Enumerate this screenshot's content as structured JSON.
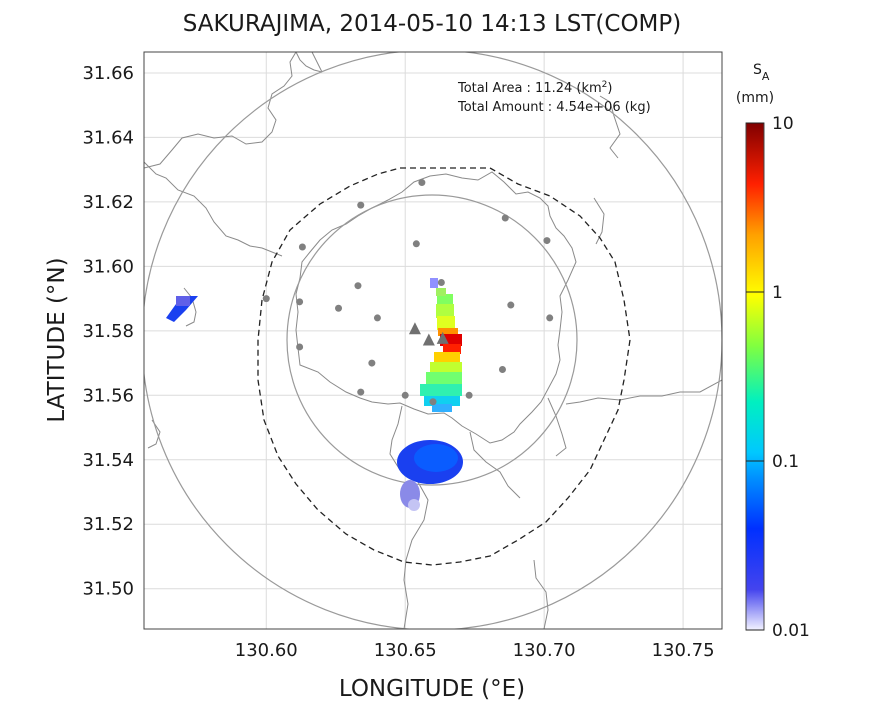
{
  "chart_data": {
    "type": "heatmap",
    "title": "SAKURAJIMA, 2014-05-10 14:13 LST(COMP)",
    "xlabel": "LONGITUDE (°E)",
    "ylabel": "LATITUDE (°N)",
    "xlim": [
      130.556,
      130.764
    ],
    "ylim": [
      31.4875,
      31.6665
    ],
    "x_ticks": [
      130.6,
      130.65,
      130.7,
      130.75
    ],
    "x_tick_labels": [
      "130.60",
      "130.65",
      "130.70",
      "130.75"
    ],
    "y_ticks": [
      31.5,
      31.52,
      31.54,
      31.56,
      31.58,
      31.6,
      31.62,
      31.64,
      31.66
    ],
    "y_tick_labels": [
      "31.50",
      "31.52",
      "31.54",
      "31.56",
      "31.58",
      "31.60",
      "31.62",
      "31.64",
      "31.66"
    ],
    "grid": true,
    "annotations": {
      "area_label": "Total Area   : 11.24 (km",
      "area_sup": "2",
      "area_close": ")",
      "amount_label": "Total Amount : 4.54e+06 (kg)"
    },
    "colorbar": {
      "label_main": "S",
      "label_sub": "A",
      "unit": "(mm)",
      "scale": "log",
      "range": [
        0.01,
        10
      ],
      "ticks": [
        10,
        1,
        0.1,
        0.01
      ],
      "tick_labels": [
        "10",
        "1",
        "0.1",
        "0.01"
      ],
      "colors": [
        "#f2f2ff",
        "#3030f0",
        "#0060ff",
        "#00b0ff",
        "#00e0d0",
        "#40f080",
        "#c0ff30",
        "#ffff00",
        "#ffb000",
        "#ff4000",
        "#e00000",
        "#800000"
      ]
    },
    "range_circles": {
      "center": [
        130.6585,
        31.578
      ],
      "radii_km": [
        15,
        30
      ]
    },
    "stations": [
      [
        130.656,
        31.626
      ],
      [
        130.634,
        31.619
      ],
      [
        130.686,
        31.615
      ],
      [
        130.613,
        31.606
      ],
      [
        130.654,
        31.607
      ],
      [
        130.701,
        31.608
      ],
      [
        130.663,
        31.595
      ],
      [
        130.6,
        31.59
      ],
      [
        130.612,
        31.589
      ],
      [
        130.633,
        31.594
      ],
      [
        130.626,
        31.587
      ],
      [
        130.64,
        31.584
      ],
      [
        130.688,
        31.588
      ],
      [
        130.702,
        31.584
      ],
      [
        130.612,
        31.575
      ],
      [
        130.638,
        31.57
      ],
      [
        130.685,
        31.568
      ],
      [
        130.634,
        31.561
      ],
      [
        130.65,
        31.56
      ],
      [
        130.66,
        31.558
      ],
      [
        130.673,
        31.56
      ]
    ],
    "vents": [
      [
        130.6535,
        31.5805
      ],
      [
        130.6585,
        31.577
      ],
      [
        130.6635,
        31.5775
      ]
    ],
    "ash_deposit": [
      {
        "region": "plume near vents",
        "lon_range": [
          130.657,
          130.668
        ],
        "lat_range": [
          31.555,
          31.592
        ],
        "value_range_mm": [
          0.1,
          10
        ]
      },
      {
        "region": "southern patch",
        "lon_range": [
          130.648,
          130.673
        ],
        "lat_range": [
          31.526,
          31.545
        ],
        "value_range_mm": [
          0.01,
          0.05
        ]
      },
      {
        "region": "western patch",
        "lon_range": [
          130.565,
          130.575
        ],
        "lat_range": [
          31.584,
          31.591
        ],
        "value_range_mm": [
          0.01,
          0.03
        ]
      }
    ]
  }
}
